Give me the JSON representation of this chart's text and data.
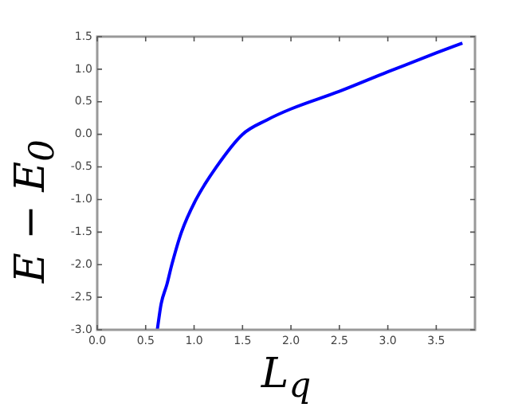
{
  "chart_data": {
    "type": "line",
    "xlabel": "L$_{q}$",
    "ylabel": "E − E$_{0}$",
    "series": [
      {
        "color": "#0000ff",
        "x": [
          0.62,
          0.66,
          0.72,
          0.77,
          0.87,
          1.02,
          1.23,
          1.5,
          1.75,
          2.0,
          2.5,
          3.0,
          3.5,
          3.77
        ],
        "values": [
          -3.0,
          -2.6,
          -2.3,
          -2.0,
          -1.5,
          -1.0,
          -0.5,
          0.0,
          0.22,
          0.39,
          0.66,
          0.96,
          1.25,
          1.4
        ]
      }
    ],
    "xlim": [
      0,
      3.9
    ],
    "xticks": [
      {
        "value": 0,
        "label": "0.0"
      },
      {
        "value": 0.5,
        "label": "0.5"
      },
      {
        "value": 1,
        "label": "1.0"
      },
      {
        "value": 1.5,
        "label": "1.5"
      },
      {
        "value": 2,
        "label": "2.0"
      },
      {
        "value": 2.5,
        "label": "2.5"
      },
      {
        "value": 3,
        "label": "3.0"
      },
      {
        "value": 3.5,
        "label": "3.5"
      }
    ],
    "ylim": [
      -3,
      1.5
    ],
    "yticks": [
      {
        "value": -3,
        "label": "-3.0"
      },
      {
        "value": -2.5,
        "label": "-2.5"
      },
      {
        "value": -2,
        "label": "-2.0"
      },
      {
        "value": -1.5,
        "label": "-1.5"
      },
      {
        "value": -1,
        "label": "-1.0"
      },
      {
        "value": -0.5,
        "label": "-0.5"
      },
      {
        "value": 0,
        "label": "0.0"
      },
      {
        "value": 0.5,
        "label": "0.5"
      },
      {
        "value": 1,
        "label": "1.0"
      },
      {
        "value": 1.5,
        "label": "1.5"
      }
    ],
    "grid": false,
    "marker": "none",
    "line_style": "solid",
    "legend": false
  }
}
